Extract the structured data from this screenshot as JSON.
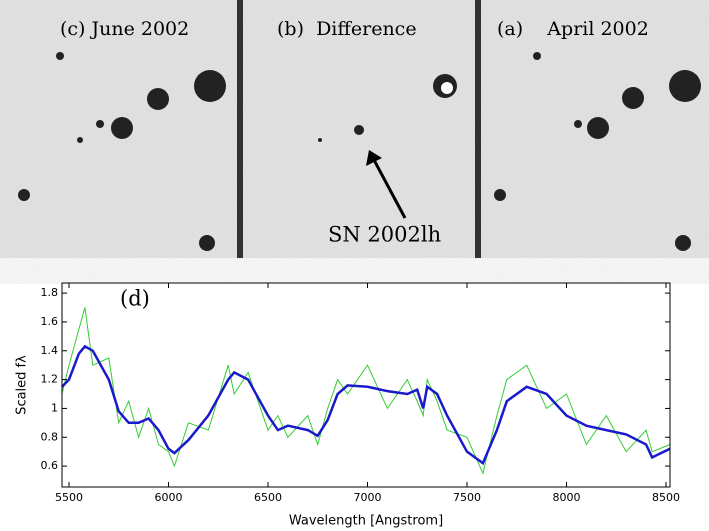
{
  "panels": [
    {
      "label": "(c) June 2002"
    },
    {
      "label": "(b)  Difference",
      "annotation": "SN 2002lh"
    },
    {
      "label": "(a)    April 2002"
    }
  ],
  "chart_data": {
    "type": "line",
    "annotation": "(d)",
    "x_label": "Wavelength [Angstrom]",
    "y_label": "Scaled fλ",
    "x": [
      5465,
      5500,
      5550,
      5580,
      5620,
      5700,
      5750,
      5800,
      5850,
      5900,
      5950,
      6000,
      6030,
      6100,
      6200,
      6300,
      6330,
      6400,
      6500,
      6550,
      6600,
      6700,
      6750,
      6800,
      6850,
      6900,
      7000,
      7100,
      7200,
      7250,
      7280,
      7300,
      7350,
      7400,
      7500,
      7580,
      7650,
      7700,
      7800,
      7900,
      8000,
      8100,
      8200,
      8300,
      8400,
      8430,
      8520
    ],
    "series": [
      {
        "color": "#33cc33",
        "values": [
          1.1,
          1.3,
          1.55,
          1.7,
          1.3,
          1.35,
          0.9,
          1.05,
          0.8,
          1.0,
          0.75,
          0.7,
          0.6,
          0.9,
          0.85,
          1.3,
          1.1,
          1.25,
          0.85,
          0.95,
          0.8,
          0.95,
          0.75,
          1.0,
          1.2,
          1.1,
          1.3,
          1.0,
          1.2,
          1.05,
          0.95,
          1.2,
          1.05,
          0.85,
          0.8,
          0.55,
          0.95,
          1.2,
          1.3,
          1.0,
          1.1,
          0.75,
          0.95,
          0.7,
          0.85,
          0.7,
          0.75
        ]
      },
      {
        "color": "#1a1acc",
        "values": [
          1.15,
          1.2,
          1.38,
          1.43,
          1.4,
          1.2,
          0.98,
          0.9,
          0.9,
          0.93,
          0.85,
          0.72,
          0.69,
          0.78,
          0.95,
          1.2,
          1.25,
          1.2,
          0.95,
          0.85,
          0.88,
          0.85,
          0.81,
          0.92,
          1.1,
          1.16,
          1.15,
          1.12,
          1.1,
          1.13,
          1.0,
          1.15,
          1.1,
          0.95,
          0.7,
          0.62,
          0.85,
          1.05,
          1.15,
          1.1,
          0.95,
          0.88,
          0.85,
          0.82,
          0.75,
          0.66,
          0.72
        ]
      }
    ],
    "xlim": [
      5465,
      8520
    ],
    "ylim": [
      0.455,
      1.87
    ],
    "xticks": [
      5500,
      6000,
      6500,
      7000,
      7500,
      8000,
      8500
    ],
    "yticks": [
      0.6,
      0.8,
      1,
      1.2,
      1.4,
      1.6,
      1.8
    ]
  }
}
